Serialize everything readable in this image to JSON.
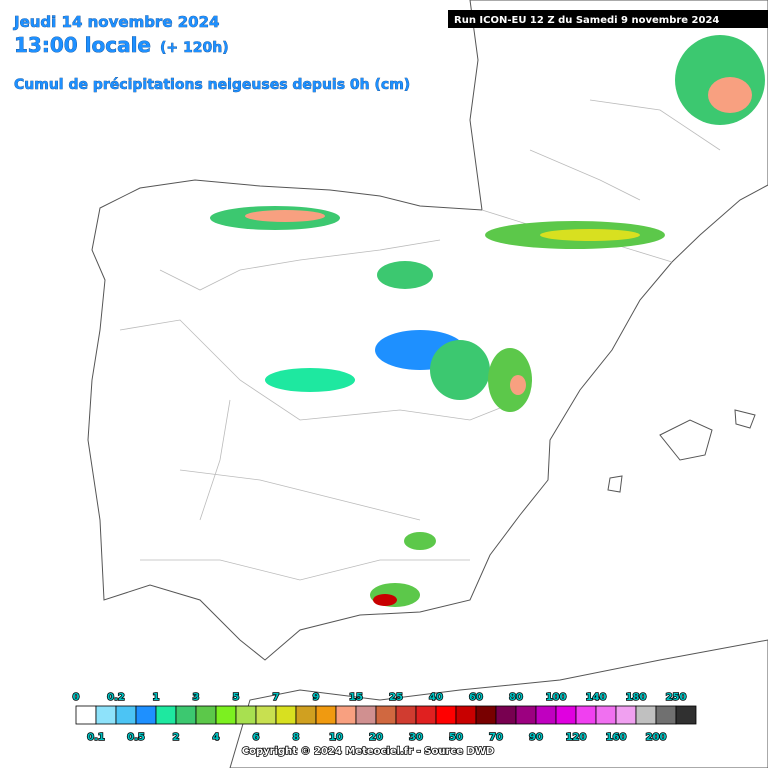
{
  "header": {
    "date": "Jeudi 14 novembre 2024",
    "time": "13:00 locale",
    "lead": "(+ 120h)",
    "subtitle": "Cumul de précipitations neigeuses depuis 0h (cm)",
    "run": "Run ICON-EU 12 Z du Samedi 9 novembre 2024"
  },
  "legend": {
    "items": [
      {
        "label": "0",
        "color": "#ffffff"
      },
      {
        "label": "0.1",
        "color": "#8ee2fa"
      },
      {
        "label": "0.2",
        "color": "#4cc4f4"
      },
      {
        "label": "0.5",
        "color": "#1e90ff"
      },
      {
        "label": "1",
        "color": "#1ee8a0"
      },
      {
        "label": "2",
        "color": "#3cc870"
      },
      {
        "label": "3",
        "color": "#5cc84a"
      },
      {
        "label": "4",
        "color": "#7cf020"
      },
      {
        "label": "5",
        "color": "#a8e050"
      },
      {
        "label": "6",
        "color": "#c8e050"
      },
      {
        "label": "7",
        "color": "#d8e020"
      },
      {
        "label": "8",
        "color": "#d0a020"
      },
      {
        "label": "9",
        "color": "#f09a10"
      },
      {
        "label": "10",
        "color": "#f8a080"
      },
      {
        "label": "15",
        "color": "#d09090"
      },
      {
        "label": "20",
        "color": "#d06840"
      },
      {
        "label": "25",
        "color": "#d03c30"
      },
      {
        "label": "30",
        "color": "#e02020"
      },
      {
        "label": "40",
        "color": "#ff0000"
      },
      {
        "label": "50",
        "color": "#c80000"
      },
      {
        "label": "60",
        "color": "#780000"
      },
      {
        "label": "70",
        "color": "#780050"
      },
      {
        "label": "80",
        "color": "#9c0080"
      },
      {
        "label": "90",
        "color": "#c000c0"
      },
      {
        "label": "100",
        "color": "#e000e0"
      },
      {
        "label": "120",
        "color": "#f040f0"
      },
      {
        "label": "140",
        "color": "#f070f0"
      },
      {
        "label": "160",
        "color": "#f0a0f0"
      },
      {
        "label": "180",
        "color": "#c0c0c0"
      },
      {
        "label": "200",
        "color": "#707070"
      },
      {
        "label": "250",
        "color": "#303030"
      }
    ]
  },
  "footer": {
    "copyright": "Copyright © 2024 Meteociel.fr - Source DWD"
  }
}
